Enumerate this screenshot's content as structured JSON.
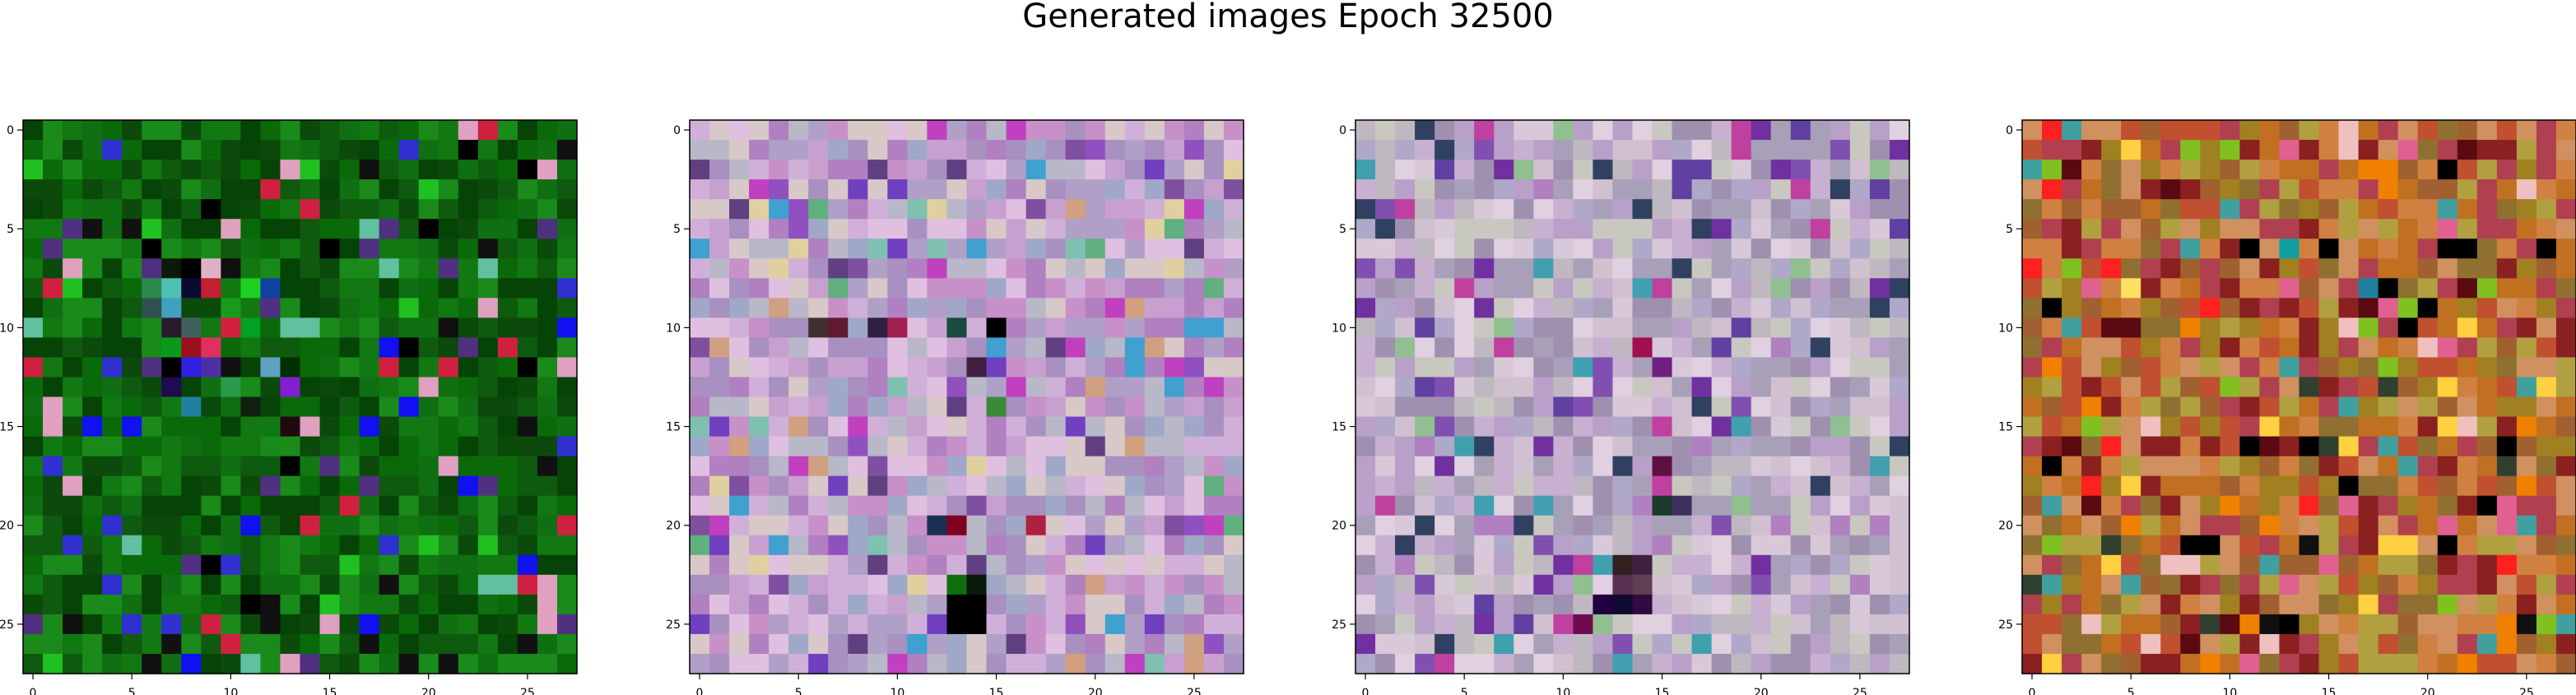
{
  "figure": {
    "title": "Generated images Epoch 32500"
  },
  "chart_data": [
    {
      "type": "heatmap",
      "title": "",
      "grid_size": [
        28,
        28
      ],
      "xticks": [
        0,
        5,
        10,
        15,
        20,
        25
      ],
      "yticks": [
        0,
        5,
        10,
        15,
        20,
        25
      ],
      "xlim": [
        -0.5,
        27.5
      ],
      "ylim": [
        27.5,
        -0.5
      ],
      "grid": false,
      "palette": {
        "base": [
          "#0a6a0a",
          "#0e5a0e",
          "#127812",
          "#0b4a0b",
          "#1a8a1a",
          "#0f6f12",
          "#064306"
        ],
        "accent": [
          "#000000",
          "#111111",
          "#e0a0c0",
          "#d02040",
          "#3030d0",
          "#1010f0",
          "#20c020",
          "#60c0a0",
          "#503080"
        ]
      },
      "special_cells": [
        {
          "row": 7,
          "col": 7,
          "color": "#0a1a0a"
        },
        {
          "row": 7,
          "col": 8,
          "color": "#000000"
        },
        {
          "row": 7,
          "col": 9,
          "color": "#e0b0c8"
        },
        {
          "row": 7,
          "col": 10,
          "color": "#101010"
        },
        {
          "row": 8,
          "col": 6,
          "color": "#2a8a4a"
        },
        {
          "row": 8,
          "col": 7,
          "color": "#50c0b0"
        },
        {
          "row": 8,
          "col": 8,
          "color": "#0a0a30"
        },
        {
          "row": 8,
          "col": 9,
          "color": "#c02030"
        },
        {
          "row": 8,
          "col": 11,
          "color": "#20d020"
        },
        {
          "row": 8,
          "col": 12,
          "color": "#1040a0"
        },
        {
          "row": 9,
          "col": 6,
          "color": "#305050"
        },
        {
          "row": 9,
          "col": 7,
          "color": "#40a0c0"
        },
        {
          "row": 9,
          "col": 8,
          "color": "#0a4a0a"
        },
        {
          "row": 9,
          "col": 10,
          "color": "#1a9a1a"
        },
        {
          "row": 10,
          "col": 7,
          "color": "#2a1a30"
        },
        {
          "row": 10,
          "col": 8,
          "color": "#406060"
        },
        {
          "row": 10,
          "col": 10,
          "color": "#d02040"
        },
        {
          "row": 10,
          "col": 11,
          "color": "#00a020"
        },
        {
          "row": 11,
          "col": 7,
          "color": "#0a9a1a"
        },
        {
          "row": 11,
          "col": 8,
          "color": "#9a1020"
        },
        {
          "row": 11,
          "col": 9,
          "color": "#e03060"
        },
        {
          "row": 11,
          "col": 10,
          "color": "#0a6a0a"
        },
        {
          "row": 12,
          "col": 8,
          "color": "#3020e0"
        },
        {
          "row": 12,
          "col": 9,
          "color": "#4a30a0"
        },
        {
          "row": 12,
          "col": 12,
          "color": "#60a0c0"
        },
        {
          "row": 12,
          "col": 13,
          "color": "#003000"
        },
        {
          "row": 13,
          "col": 7,
          "color": "#200a50"
        },
        {
          "row": 13,
          "col": 10,
          "color": "#2a9a4a"
        },
        {
          "row": 13,
          "col": 13,
          "color": "#8020d0"
        },
        {
          "row": 14,
          "col": 8,
          "color": "#2080a0"
        },
        {
          "row": 14,
          "col": 11,
          "color": "#102010"
        },
        {
          "row": 15,
          "col": 13,
          "color": "#200a10"
        },
        {
          "row": 24,
          "col": 11,
          "color": "#000000"
        },
        {
          "row": 24,
          "col": 12,
          "color": "#111111"
        }
      ]
    },
    {
      "type": "heatmap",
      "title": "",
      "grid_size": [
        28,
        28
      ],
      "xticks": [
        0,
        5,
        10,
        15,
        20,
        25
      ],
      "yticks": [
        0,
        5,
        10,
        15,
        20,
        25
      ],
      "xlim": [
        -0.5,
        27.5
      ],
      "ylim": [
        27.5,
        -0.5
      ],
      "grid": false,
      "palette": {
        "base": [
          "#c8a0d0",
          "#b0a0c8",
          "#d0b0d8",
          "#a890c0",
          "#e0c0e0",
          "#b8b8c8",
          "#c890c8",
          "#a0a8c8",
          "#d8c8c8",
          "#b080c0"
        ],
        "accent": [
          "#9050c0",
          "#7040c0",
          "#40a0d0",
          "#60b080",
          "#d0a080",
          "#8050a0",
          "#e0d0a0",
          "#c040c0",
          "#80c0b0",
          "#604080"
        ]
      },
      "special_cells": [
        {
          "row": 10,
          "col": 6,
          "color": "#403030"
        },
        {
          "row": 10,
          "col": 7,
          "color": "#601a30"
        },
        {
          "row": 10,
          "col": 9,
          "color": "#302040"
        },
        {
          "row": 10,
          "col": 10,
          "color": "#a02050"
        },
        {
          "row": 10,
          "col": 13,
          "color": "#1a4a40"
        },
        {
          "row": 10,
          "col": 15,
          "color": "#000000"
        },
        {
          "row": 12,
          "col": 14,
          "color": "#402040"
        },
        {
          "row": 14,
          "col": 15,
          "color": "#3a8a3a"
        },
        {
          "row": 20,
          "col": 12,
          "color": "#1a3050"
        },
        {
          "row": 20,
          "col": 13,
          "color": "#800020"
        },
        {
          "row": 20,
          "col": 17,
          "color": "#b02040"
        },
        {
          "row": 23,
          "col": 13,
          "color": "#107010"
        },
        {
          "row": 23,
          "col": 14,
          "color": "#0a1a0a"
        },
        {
          "row": 24,
          "col": 13,
          "color": "#000000"
        },
        {
          "row": 24,
          "col": 14,
          "color": "#000000"
        },
        {
          "row": 25,
          "col": 13,
          "color": "#000000"
        },
        {
          "row": 25,
          "col": 14,
          "color": "#000000"
        }
      ]
    },
    {
      "type": "heatmap",
      "title": "",
      "grid_size": [
        28,
        28
      ],
      "xticks": [
        0,
        5,
        10,
        15,
        20,
        25
      ],
      "yticks": [
        0,
        5,
        10,
        15,
        20,
        25
      ],
      "xlim": [
        -0.5,
        27.5
      ],
      "ylim": [
        27.5,
        -0.5
      ],
      "grid": false,
      "palette": {
        "base": [
          "#c8b0d0",
          "#b0a8c8",
          "#d8c8d8",
          "#a8a0b8",
          "#e0d0e0",
          "#c0b8c0",
          "#b8a0c8",
          "#d0c0d0",
          "#a090b0",
          "#c8c8c0"
        ],
        "accent": [
          "#8050b0",
          "#6040a0",
          "#40a0b0",
          "#90c090",
          "#c040a0",
          "#7030a0",
          "#304060",
          "#b080c0"
        ]
      },
      "special_cells": [
        {
          "row": 11,
          "col": 14,
          "color": "#a01050"
        },
        {
          "row": 12,
          "col": 15,
          "color": "#702080"
        },
        {
          "row": 17,
          "col": 15,
          "color": "#601040"
        },
        {
          "row": 19,
          "col": 15,
          "color": "#1a3a2a"
        },
        {
          "row": 19,
          "col": 16,
          "color": "#403060"
        },
        {
          "row": 22,
          "col": 13,
          "color": "#302020"
        },
        {
          "row": 22,
          "col": 14,
          "color": "#402040"
        },
        {
          "row": 23,
          "col": 13,
          "color": "#5a3050"
        },
        {
          "row": 23,
          "col": 14,
          "color": "#604050"
        },
        {
          "row": 24,
          "col": 12,
          "color": "#200040"
        },
        {
          "row": 24,
          "col": 13,
          "color": "#100a30"
        },
        {
          "row": 24,
          "col": 14,
          "color": "#300a40"
        },
        {
          "row": 25,
          "col": 11,
          "color": "#700a50"
        }
      ]
    },
    {
      "type": "heatmap",
      "title": "",
      "grid_size": [
        28,
        28
      ],
      "xticks": [
        0,
        5,
        10,
        15,
        20,
        25
      ],
      "yticks": [
        0,
        5,
        10,
        15,
        20,
        25
      ],
      "xlim": [
        -0.5,
        27.5
      ],
      "ylim": [
        27.5,
        -0.5
      ],
      "grid": false,
      "palette": {
        "base": [
          "#a06030",
          "#c07020",
          "#8a2020",
          "#d08040",
          "#b04050",
          "#a08020",
          "#c05030",
          "#907030",
          "#d09060",
          "#b0a040"
        ],
        "accent": [
          "#ff2020",
          "#ffd040",
          "#f08000",
          "#000000",
          "#5a0a10",
          "#e06090",
          "#40a0a0",
          "#80c020",
          "#f0c0c0",
          "#304030"
        ]
      },
      "special_cells": [
        {
          "row": 6,
          "col": 11,
          "color": "#000000"
        },
        {
          "row": 6,
          "col": 13,
          "color": "#10a0a0"
        },
        {
          "row": 6,
          "col": 15,
          "color": "#000000"
        },
        {
          "row": 6,
          "col": 22,
          "color": "#000000"
        },
        {
          "row": 8,
          "col": 5,
          "color": "#ffe060"
        },
        {
          "row": 8,
          "col": 17,
          "color": "#2080a0"
        },
        {
          "row": 16,
          "col": 11,
          "color": "#000000"
        },
        {
          "row": 16,
          "col": 24,
          "color": "#000000"
        },
        {
          "row": 21,
          "col": 8,
          "color": "#000000"
        },
        {
          "row": 21,
          "col": 14,
          "color": "#101010"
        },
        {
          "row": 21,
          "col": 21,
          "color": "#000000"
        },
        {
          "row": 25,
          "col": 12,
          "color": "#101010"
        },
        {
          "row": 25,
          "col": 13,
          "color": "#000000"
        },
        {
          "row": 25,
          "col": 25,
          "color": "#101010"
        }
      ]
    }
  ]
}
